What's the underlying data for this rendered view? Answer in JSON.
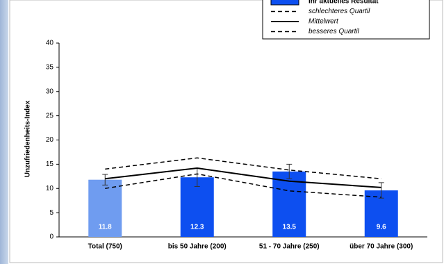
{
  "chart_data": {
    "type": "bar",
    "y_label": "Unzufriedenheits-Index",
    "categories": [
      "Total (750)",
      "bis 50 Jahre (200)",
      "51 - 70 Jahre (250)",
      "über 70 Jahre (300)"
    ],
    "series": [
      {
        "name": "Ihr aktuelles Resultat",
        "type": "bar",
        "colors": [
          "#6f9cf0",
          "#0d4ff0",
          "#0d4ff0",
          "#0d4ff0"
        ],
        "values": [
          11.8,
          12.3,
          13.5,
          9.6
        ],
        "errors": [
          1.1,
          1.9,
          1.5,
          1.6
        ]
      },
      {
        "name": "schlechteres Quartil",
        "type": "line",
        "color": "#000000",
        "dashed": true,
        "values": [
          14,
          16.3,
          13.8,
          12
        ]
      },
      {
        "name": "Mittelwert",
        "type": "line",
        "color": "#000000",
        "dashed": false,
        "values": [
          12,
          14.2,
          11.5,
          10.2
        ]
      },
      {
        "name": "besseres Quartil",
        "type": "line",
        "color": "#000000",
        "dashed": true,
        "values": [
          10,
          13,
          9.5,
          8.2
        ]
      }
    ],
    "ylim": [
      0,
      40
    ],
    "yticks": [
      0,
      5,
      10,
      15,
      20,
      25,
      30,
      35,
      40
    ],
    "grid": false
  }
}
